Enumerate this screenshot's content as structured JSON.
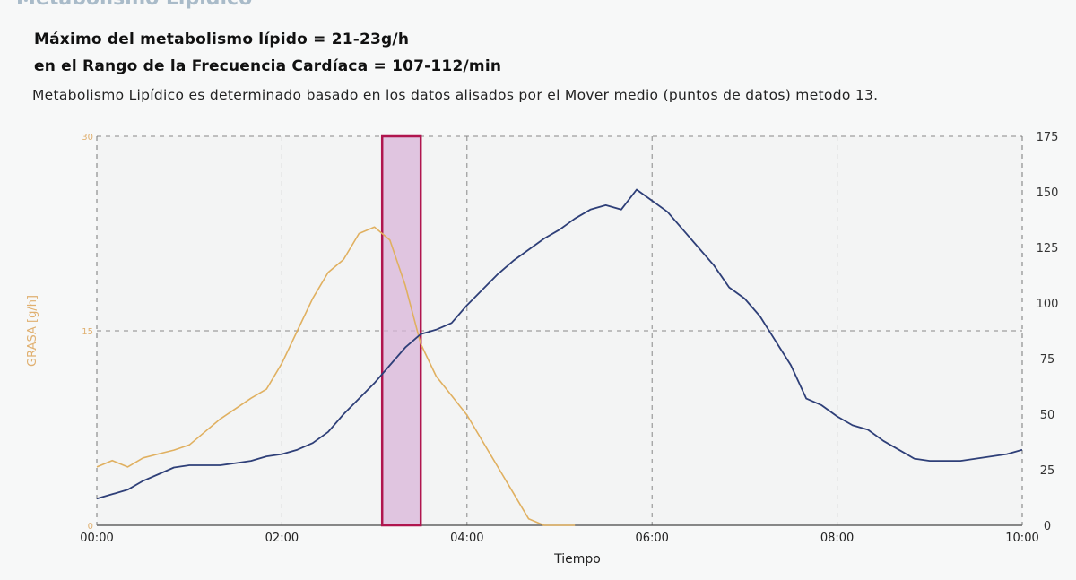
{
  "header": {
    "section_title": "Metabolismo Lipídico",
    "line1": "Máximo del metabolismo lípido =  21-23g/h",
    "line2": "en el Rango de la Frecuencia Cardíaca = 107-112/min",
    "note": "Metabolismo Lipídico es determinado basado en los datos alisados por el Mover medio (puntos de datos) metodo 13."
  },
  "colors": {
    "fat_line": "#e0b060",
    "hr_line": "#2e3f78",
    "band_fill": "#d9b6d9",
    "band_stroke": "#b0154e",
    "grid": "#888888",
    "left_axis_text": "#e0b070"
  },
  "chart_data": {
    "type": "line",
    "title": "",
    "xlabel": "Tiempo",
    "ylabel_left": "GRASA [g/h]",
    "ylabel_right": "",
    "x_ticks": [
      "00:00",
      "02:00",
      "04:00",
      "06:00",
      "08:00",
      "10:00"
    ],
    "xlim": [
      0,
      600
    ],
    "y_left_ticks": [
      "0",
      "15",
      "30"
    ],
    "ylim_left": [
      0,
      30
    ],
    "y_right_ticks": [
      "0",
      "25",
      "50",
      "75",
      "100",
      "125",
      "150",
      "175"
    ],
    "ylim_right": [
      0,
      175
    ],
    "grid": true,
    "highlight_band": {
      "x": [
        185,
        210
      ]
    },
    "series": [
      {
        "axis": "left",
        "x": [
          0,
          10,
          20,
          30,
          40,
          50,
          60,
          70,
          80,
          90,
          100,
          110,
          120,
          130,
          140,
          150,
          160,
          170,
          180,
          190,
          200,
          210,
          220,
          230,
          240,
          250,
          260,
          270,
          280,
          290,
          300,
          310
        ],
        "values": [
          4.5,
          5.0,
          4.5,
          5.2,
          5.5,
          5.8,
          6.2,
          7.2,
          8.2,
          9.0,
          9.8,
          10.5,
          12.5,
          15.0,
          17.5,
          19.5,
          20.5,
          22.5,
          23.0,
          22.0,
          18.5,
          14.0,
          11.5,
          10.0,
          8.5,
          6.5,
          4.5,
          2.5,
          0.5,
          0,
          0,
          0
        ]
      },
      {
        "axis": "right",
        "x": [
          0,
          10,
          20,
          30,
          40,
          50,
          60,
          70,
          80,
          90,
          100,
          110,
          120,
          130,
          140,
          150,
          160,
          170,
          180,
          190,
          200,
          210,
          220,
          230,
          240,
          250,
          260,
          270,
          280,
          290,
          300,
          310,
          320,
          330,
          340,
          350,
          360,
          370,
          380,
          390,
          400,
          410,
          420,
          430,
          440,
          450,
          460,
          470,
          480,
          490,
          500,
          510,
          520,
          530,
          540,
          550,
          560,
          570,
          580,
          590,
          600
        ],
        "values": [
          12,
          14,
          16,
          20,
          23,
          26,
          27,
          27,
          27,
          28,
          29,
          31,
          32,
          34,
          37,
          42,
          50,
          57,
          64,
          72,
          80,
          86,
          88,
          91,
          99,
          106,
          113,
          119,
          124,
          129,
          133,
          138,
          142,
          144,
          142,
          151,
          146,
          141,
          133,
          125,
          117,
          107,
          102,
          94,
          83,
          72,
          57,
          54,
          49,
          45,
          43,
          38,
          34,
          30,
          29,
          29,
          29,
          30,
          31,
          32,
          34
        ]
      }
    ]
  }
}
